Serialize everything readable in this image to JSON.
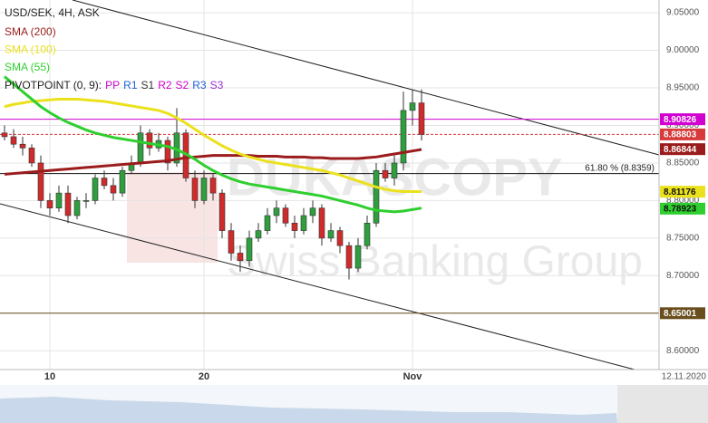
{
  "chart_data": {
    "type": "candlestick",
    "title": "USD/SEK, 4H, ASK",
    "categories": [
      null,
      null,
      null,
      null,
      null,
      "10",
      null,
      null,
      null,
      null,
      null,
      null,
      null,
      null,
      null,
      null,
      null,
      null,
      null,
      null,
      null,
      null,
      "20",
      null,
      null,
      null,
      null,
      null,
      null,
      null,
      null,
      null,
      null,
      null,
      null,
      null,
      null,
      null,
      null,
      null,
      null,
      null,
      null,
      null,
      null,
      "Nov",
      null
    ],
    "open": [
      8.89,
      8.885,
      8.875,
      8.87,
      8.85,
      8.8,
      8.79,
      8.81,
      8.78,
      8.8,
      8.8,
      8.83,
      8.82,
      8.81,
      8.84,
      8.85,
      8.89,
      8.87,
      8.88,
      8.85,
      8.89,
      8.83,
      8.8,
      8.83,
      8.81,
      8.76,
      8.73,
      8.72,
      8.75,
      8.76,
      8.78,
      8.79,
      8.77,
      8.76,
      8.78,
      8.79,
      8.75,
      8.76,
      8.74,
      8.71,
      8.74,
      8.77,
      8.84,
      8.83,
      8.85,
      8.92,
      8.93
    ],
    "high": [
      8.9,
      8.895,
      8.885,
      8.875,
      8.86,
      8.81,
      8.82,
      8.82,
      8.805,
      8.81,
      8.835,
      8.84,
      8.83,
      8.845,
      8.86,
      8.9,
      8.895,
      8.89,
      8.885,
      8.923,
      8.895,
      8.84,
      8.84,
      8.835,
      8.815,
      8.77,
      8.74,
      8.76,
      8.77,
      8.79,
      8.8,
      8.795,
      8.78,
      8.79,
      8.8,
      8.795,
      8.77,
      8.765,
      8.745,
      8.75,
      8.78,
      8.85,
      8.85,
      8.86,
      8.945,
      8.948,
      8.948
    ],
    "low": [
      8.88,
      8.87,
      8.86,
      8.845,
      8.79,
      8.78,
      8.785,
      8.77,
      8.775,
      8.79,
      8.795,
      8.815,
      8.8,
      8.805,
      8.835,
      8.845,
      8.86,
      8.865,
      8.84,
      8.845,
      8.825,
      8.79,
      8.795,
      8.8,
      8.75,
      8.72,
      8.705,
      8.712,
      8.745,
      8.755,
      8.77,
      8.765,
      8.75,
      8.755,
      8.77,
      8.74,
      8.745,
      8.73,
      8.695,
      8.705,
      8.735,
      8.765,
      8.825,
      8.82,
      8.84,
      8.9,
      8.88
    ],
    "close": [
      8.885,
      8.875,
      8.87,
      8.85,
      8.8,
      8.79,
      8.81,
      8.78,
      8.8,
      8.8,
      8.83,
      8.82,
      8.81,
      8.84,
      8.85,
      8.89,
      8.87,
      8.88,
      8.85,
      8.89,
      8.83,
      8.8,
      8.83,
      8.81,
      8.76,
      8.73,
      8.72,
      8.75,
      8.76,
      8.78,
      8.79,
      8.77,
      8.76,
      8.78,
      8.79,
      8.75,
      8.76,
      8.74,
      8.71,
      8.74,
      8.77,
      8.84,
      8.83,
      8.85,
      8.92,
      8.93,
      8.888
    ],
    "up_color": "#2e9e3e",
    "down_color": "#d02b2b",
    "series": [
      {
        "name": "SMA (200)",
        "color": "#9b1c1c",
        "values": [
          8.835,
          8.836,
          8.837,
          8.838,
          8.839,
          8.84,
          8.841,
          8.842,
          8.843,
          8.844,
          8.845,
          8.846,
          8.847,
          8.848,
          8.849,
          8.85,
          8.851,
          8.852,
          8.853,
          8.855,
          8.857,
          8.858,
          8.859,
          8.86,
          8.86,
          8.86,
          8.86,
          8.86,
          8.859,
          8.859,
          8.859,
          8.858,
          8.858,
          8.858,
          8.857,
          8.857,
          8.856,
          8.856,
          8.856,
          8.856,
          8.857,
          8.858,
          8.86,
          8.862,
          8.864,
          8.866,
          8.868
        ]
      },
      {
        "name": "SMA (100)",
        "color": "#ebe11c",
        "values": [
          8.925,
          8.928,
          8.93,
          8.932,
          8.933,
          8.934,
          8.935,
          8.935,
          8.935,
          8.934,
          8.933,
          8.932,
          8.93,
          8.928,
          8.926,
          8.924,
          8.922,
          8.92,
          8.916,
          8.91,
          8.903,
          8.895,
          8.887,
          8.88,
          8.873,
          8.867,
          8.862,
          8.858,
          8.855,
          8.852,
          8.85,
          8.848,
          8.846,
          8.844,
          8.842,
          8.84,
          8.837,
          8.834,
          8.83,
          8.826,
          8.822,
          8.818,
          8.815,
          8.813,
          8.812,
          8.812,
          8.812
        ]
      },
      {
        "name": "SMA (55)",
        "color": "#2fcf2f",
        "values": [
          8.965,
          8.955,
          8.945,
          8.935,
          8.925,
          8.917,
          8.91,
          8.904,
          8.899,
          8.894,
          8.89,
          8.887,
          8.884,
          8.882,
          8.88,
          8.878,
          8.876,
          8.874,
          8.872,
          8.868,
          8.862,
          8.855,
          8.847,
          8.84,
          8.834,
          8.829,
          8.825,
          8.822,
          8.82,
          8.818,
          8.816,
          8.814,
          8.812,
          8.81,
          8.808,
          8.806,
          8.803,
          8.8,
          8.797,
          8.794,
          8.79,
          8.787,
          8.786,
          8.785,
          8.786,
          8.788,
          8.79
        ]
      }
    ],
    "pivot": {
      "label": "PIVOTPOINT (0, 9):",
      "items": [
        {
          "name": "PP",
          "color": "#cc00cc"
        },
        {
          "name": "R1",
          "color": "#1f5fd6"
        },
        {
          "name": "S1",
          "color": "#333333"
        },
        {
          "name": "R2",
          "color": "#cc00cc"
        },
        {
          "name": "S2",
          "color": "#cc00cc"
        },
        {
          "name": "R3",
          "color": "#1f5fd6"
        },
        {
          "name": "S3",
          "color": "#9b30d0"
        }
      ]
    },
    "levels": [
      {
        "value": 8.90826,
        "color": "#d100d1",
        "line": "solid"
      },
      {
        "value": 8.88803,
        "color": "#d63a3a",
        "line": "dashed"
      },
      {
        "value": 8.86844,
        "color": "#9b1c1c",
        "line": "none"
      },
      {
        "value": 8.81176,
        "color": "#ebe11c",
        "line": "none"
      },
      {
        "value": 8.78923,
        "color": "#2fcf2f",
        "line": "none"
      },
      {
        "value": 8.65001,
        "color": "#6b4e1e",
        "line": "solid"
      }
    ],
    "fib": {
      "label": "61.80 % (8.8359)",
      "value": 8.8359
    },
    "ylim": [
      8.575,
      9.067
    ],
    "yticks": [
      {
        "value": 9.05,
        "label": "9.05000"
      },
      {
        "value": 9.0,
        "label": "9.00000"
      },
      {
        "value": 8.95,
        "label": "8.95000"
      },
      {
        "value": 8.9,
        "label": "8.90000"
      },
      {
        "value": 8.85,
        "label": "8.85000"
      },
      {
        "value": 8.8,
        "label": "8.80000"
      },
      {
        "value": 8.75,
        "label": "8.75000"
      },
      {
        "value": 8.7,
        "label": "8.70000"
      },
      {
        "value": 8.65,
        "label": "8.65000"
      },
      {
        "value": 8.6,
        "label": "8.60000"
      }
    ],
    "grid": true,
    "date_label": "12.11.2020",
    "watermark": [
      "DUKASCOPY",
      "Swiss Banking Group"
    ]
  }
}
